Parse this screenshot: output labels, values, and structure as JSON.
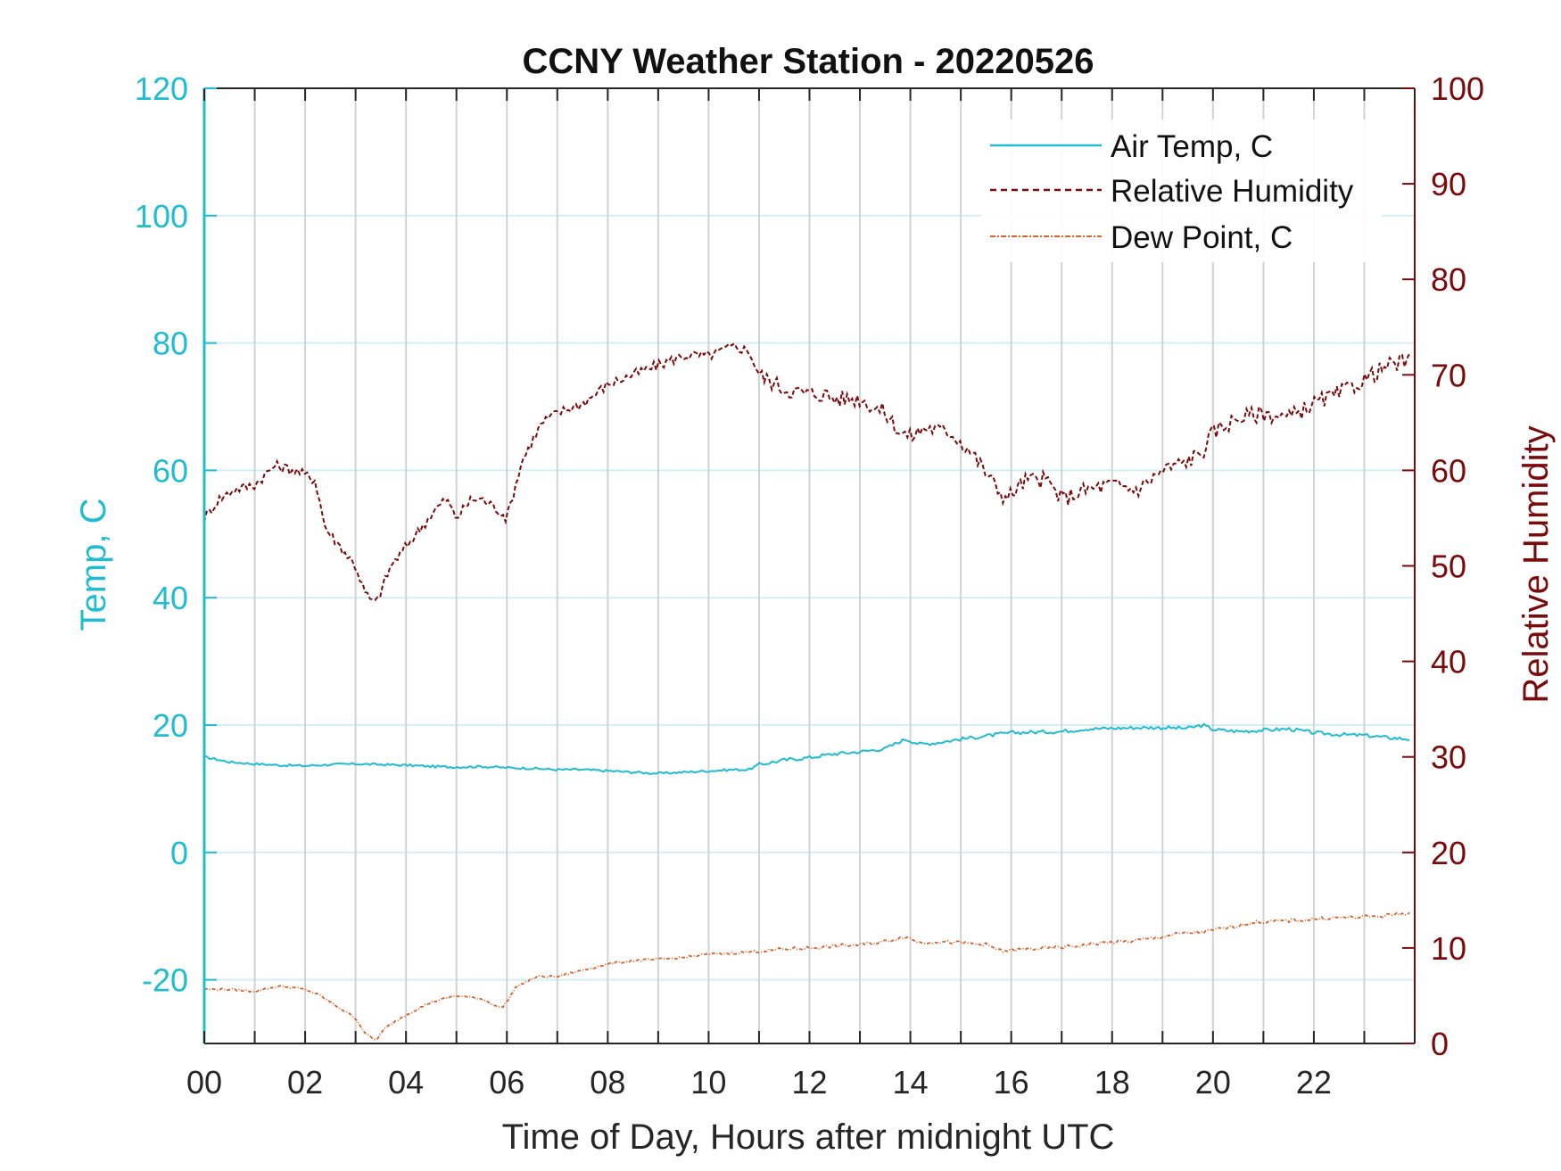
{
  "chart_data": {
    "type": "line",
    "title": "CCNY Weather Station - 20220526",
    "xlabel": "Time of Day, Hours after midnight UTC",
    "ylabel_left": "Temp, C",
    "ylabel_right": "Relative Humidity",
    "xlim": [
      0,
      24
    ],
    "ylim_left": [
      -30,
      120
    ],
    "ylim_right": [
      0,
      100
    ],
    "x_ticks": [
      0,
      2,
      4,
      6,
      8,
      10,
      12,
      14,
      16,
      18,
      20,
      22
    ],
    "x_tick_labels": [
      "00",
      "02",
      "04",
      "06",
      "08",
      "10",
      "12",
      "14",
      "16",
      "18",
      "20",
      "22"
    ],
    "y_left_ticks": [
      -20,
      0,
      20,
      40,
      60,
      80,
      100,
      120
    ],
    "y_right_ticks": [
      0,
      10,
      20,
      30,
      40,
      50,
      60,
      70,
      80,
      90,
      100
    ],
    "grid": "vertical every hour, horizontal at left-axis ticks",
    "legend_location": "top-right",
    "colors": {
      "air_temp": "#1fbcd2",
      "relative_humidity": "#7b0a0a",
      "dew_point": "#d9622b",
      "left_axis": "#1fbcd2",
      "right_axis": "#7b0a0a",
      "grid_vertical": "#d0d3d6",
      "grid_horizontal": "#d3eef4"
    },
    "series": [
      {
        "name": "Air Temp, C",
        "axis": "left",
        "style": "solid",
        "x": [
          0,
          0.5,
          1,
          1.5,
          2,
          2.5,
          3,
          3.5,
          4,
          4.5,
          5,
          5.5,
          6,
          6.5,
          7,
          7.5,
          8,
          8.5,
          9,
          9.5,
          10,
          10.5,
          10.8,
          11,
          11.5,
          12,
          12.5,
          13,
          13.5,
          13.9,
          14.2,
          14.5,
          15,
          15.5,
          16,
          16.5,
          17,
          17.5,
          18,
          18.5,
          19,
          19.5,
          19.8,
          20,
          20.5,
          21,
          21.5,
          22,
          22.5,
          23,
          23.5,
          23.9
        ],
        "y": [
          15,
          14.2,
          13.9,
          13.7,
          13.6,
          13.8,
          13.9,
          13.8,
          13.7,
          13.5,
          13.4,
          13.5,
          13.3,
          13.2,
          13.0,
          13.0,
          12.8,
          12.6,
          12.4,
          12.6,
          12.8,
          13.0,
          13.0,
          13.8,
          14.5,
          14.9,
          15.5,
          15.8,
          16.3,
          17.8,
          17.0,
          17.2,
          17.8,
          18.3,
          18.8,
          18.9,
          19.0,
          19.4,
          19.5,
          19.6,
          19.6,
          19.5,
          20.0,
          19.3,
          19.0,
          19.2,
          19.4,
          18.8,
          18.5,
          18.4,
          18.0,
          17.8
        ]
      },
      {
        "name": "Relative Humidity",
        "axis": "right",
        "style": "dashed",
        "x": [
          0,
          0.3,
          0.6,
          1,
          1.4,
          1.8,
          2.2,
          2.4,
          2.7,
          3.0,
          3.2,
          3.4,
          3.7,
          4.0,
          4.3,
          4.6,
          4.8,
          5.0,
          5.3,
          5.5,
          5.8,
          6.0,
          6.3,
          6.7,
          7.0,
          7.5,
          8.0,
          8.5,
          9.0,
          9.5,
          10.0,
          10.5,
          10.8,
          11.0,
          11.5,
          12.0,
          12.3,
          12.5,
          13.0,
          13.5,
          13.8,
          14.0,
          14.3,
          14.8,
          15.2,
          15.6,
          15.9,
          16.3,
          16.7,
          17.0,
          17.5,
          18.0,
          18.5,
          19.0,
          19.5,
          19.8,
          20.0,
          20.5,
          21.0,
          21.5,
          22.0,
          22.5,
          23.0,
          23.5,
          23.9
        ],
        "y": [
          55,
          57,
          58,
          58.5,
          60.5,
          60,
          59,
          54,
          52,
          50,
          47,
          46,
          50,
          52,
          54,
          56,
          57,
          55,
          57,
          57,
          56,
          55,
          61,
          65,
          66,
          67,
          69,
          70,
          71,
          72,
          72,
          73,
          72.5,
          70,
          68.5,
          68,
          68,
          67.5,
          67.5,
          66,
          64,
          63.5,
          64.5,
          64,
          62,
          59,
          57,
          59,
          59,
          57,
          58,
          58.5,
          58,
          60,
          61,
          62,
          64,
          65.5,
          66,
          65.5,
          67,
          68,
          69.5,
          71,
          71.5
        ]
      },
      {
        "name": "Dew Point, C",
        "axis": "left",
        "style": "dash-dot",
        "x": [
          0,
          0.5,
          1,
          1.5,
          2,
          2.3,
          2.6,
          3.0,
          3.2,
          3.4,
          3.6,
          4.0,
          4.5,
          5.0,
          5.5,
          5.9,
          6.2,
          6.6,
          7.0,
          7.5,
          8.0,
          8.5,
          9.0,
          9.5,
          10.0,
          10.5,
          11.0,
          11.5,
          12.0,
          12.5,
          13.0,
          13.5,
          13.9,
          14.2,
          14.5,
          15.0,
          15.5,
          15.8,
          16.3,
          16.8,
          17.3,
          17.8,
          18.3,
          18.8,
          19.3,
          19.8,
          20.3,
          20.8,
          21.3,
          21.8,
          22.3,
          22.8,
          23.3,
          23.9
        ],
        "y": [
          -21.5,
          -21.5,
          -21.8,
          -21.0,
          -21.5,
          -22.5,
          -24.0,
          -26.0,
          -28.5,
          -29.5,
          -27.5,
          -25.5,
          -23.5,
          -22.5,
          -23.0,
          -24.5,
          -21.0,
          -19.5,
          -19.5,
          -18.5,
          -17.5,
          -17.0,
          -16.8,
          -16.5,
          -16.0,
          -15.8,
          -15.5,
          -15.2,
          -15.0,
          -14.7,
          -14.5,
          -14.0,
          -13.2,
          -14.2,
          -14.0,
          -14.2,
          -14.5,
          -15.5,
          -15.2,
          -15.0,
          -14.7,
          -14.2,
          -14.0,
          -13.5,
          -12.8,
          -12.5,
          -11.8,
          -11.0,
          -10.8,
          -10.6,
          -10.3,
          -10.2,
          -10.0,
          -9.5
        ]
      }
    ]
  }
}
